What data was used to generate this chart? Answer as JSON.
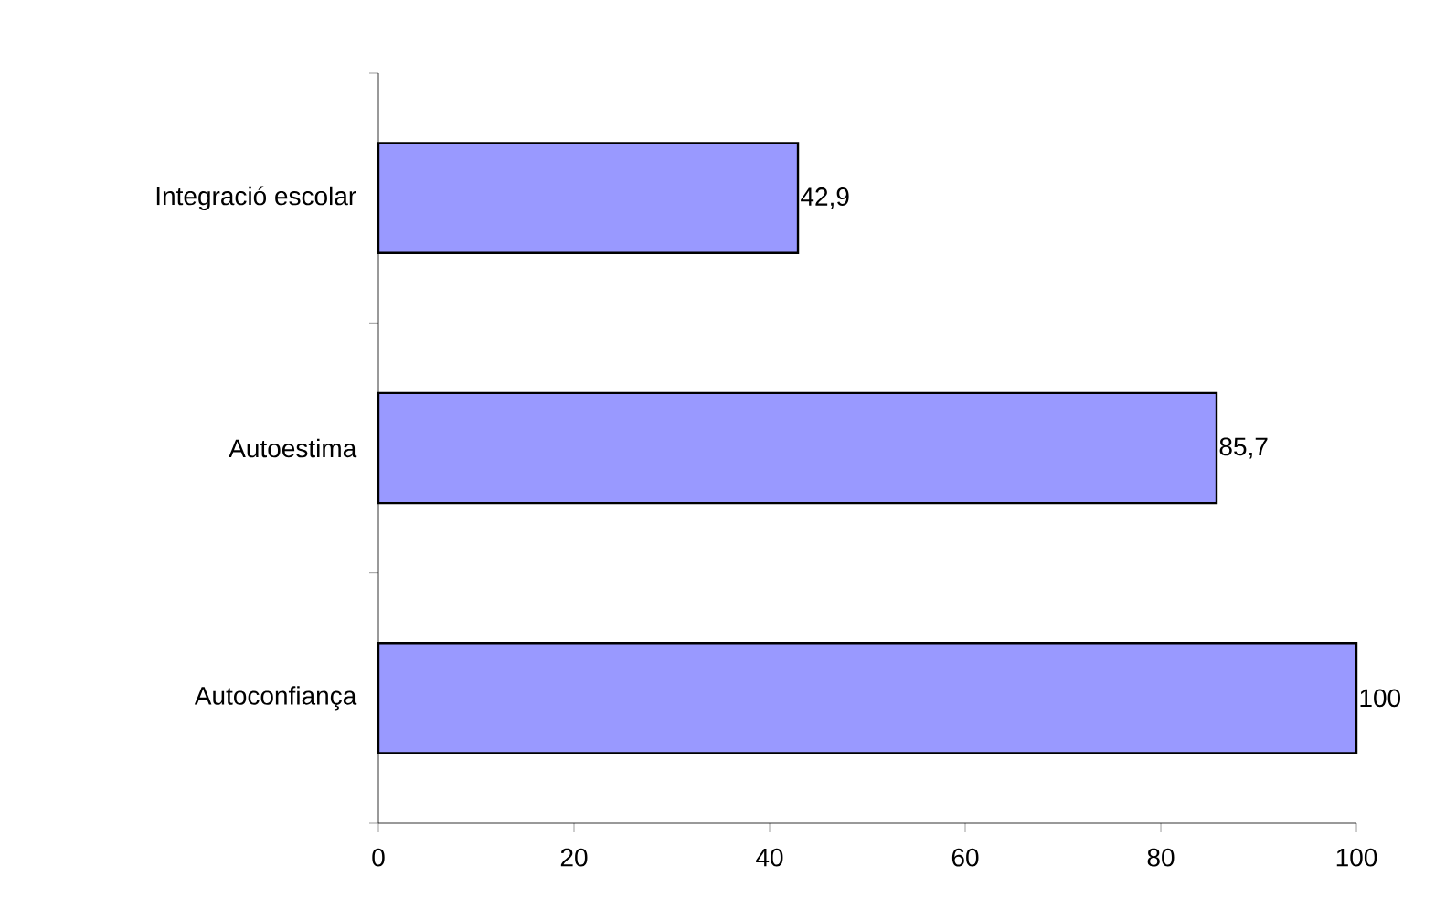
{
  "chart_data": {
    "type": "bar",
    "orientation": "horizontal",
    "categories": [
      "Integració escolar",
      "Autoestima",
      "Autoconfiança"
    ],
    "values": [
      42.9,
      85.7,
      100
    ],
    "value_labels": [
      "42,9",
      "85,7",
      "100"
    ],
    "color": "#9999ff",
    "xlim": [
      0,
      100
    ],
    "xticks": [
      0,
      20,
      40,
      60,
      80,
      100
    ]
  }
}
